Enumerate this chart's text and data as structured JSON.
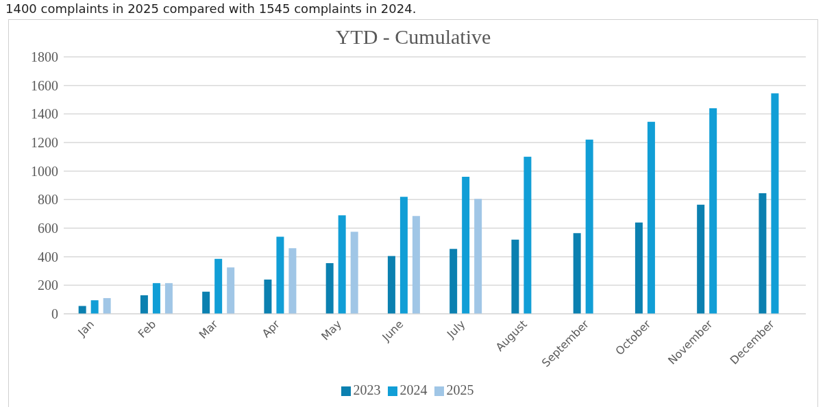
{
  "chart_data": {
    "type": "bar",
    "title": "YTD - Cumulative",
    "annotations": [
      "1400 complaints in 2025 compared with 1545 complaints in 2024."
    ],
    "categories": [
      "Jan",
      "Feb",
      "Mar",
      "Apr",
      "May",
      "June",
      "July",
      "August",
      "September",
      "October",
      "November",
      "December"
    ],
    "series": [
      {
        "name": "2023",
        "color": "#0b80b0",
        "values": [
          55,
          130,
          155,
          240,
          355,
          405,
          455,
          520,
          565,
          640,
          765,
          845
        ]
      },
      {
        "name": "2024",
        "color": "#119ed6",
        "values": [
          95,
          215,
          385,
          540,
          690,
          820,
          960,
          1100,
          1220,
          1345,
          1440,
          1545
        ]
      },
      {
        "name": "2025",
        "color": "#a0c6e6",
        "values": [
          110,
          215,
          325,
          460,
          575,
          685,
          805,
          null,
          null,
          null,
          null,
          null
        ]
      }
    ],
    "ylim": [
      0,
      1800
    ],
    "yticks": [
      0,
      200,
      400,
      600,
      800,
      1000,
      1200,
      1400,
      1600,
      1800
    ],
    "grid": "y",
    "legend": "bottom"
  }
}
